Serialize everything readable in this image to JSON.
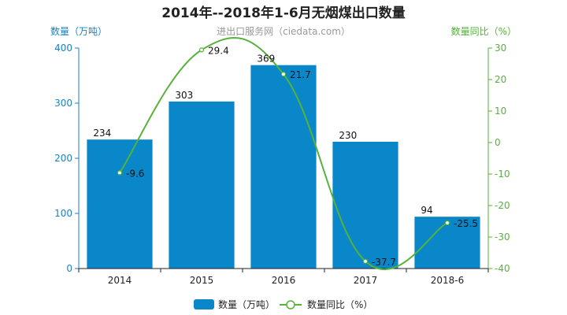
{
  "chart_data": {
    "type": "bar",
    "title": "2014年--2018年1-6月无烟煤出口数量",
    "subtitle": "进出口服务网（ciedata.com）",
    "categories": [
      "2014",
      "2015",
      "2016",
      "2017",
      "2018-6"
    ],
    "y_left": {
      "label": "数量（万吨）",
      "min": 0,
      "max": 400,
      "ticks": [
        0,
        100,
        200,
        300,
        400
      ]
    },
    "y_right": {
      "label": "数量同比（%）",
      "min": -40,
      "max": 30,
      "ticks": [
        -40,
        -30,
        -20,
        -10,
        0,
        10,
        20,
        30
      ]
    },
    "series": [
      {
        "name": "数量（万吨）",
        "type": "bar",
        "axis": "left",
        "color": "#0a87c8",
        "values": [
          234,
          303,
          369,
          230,
          94
        ]
      },
      {
        "name": "数量同比（%）",
        "type": "line",
        "axis": "right",
        "color": "#55b23a",
        "smooth": true,
        "values": [
          -9.6,
          29.4,
          21.7,
          -37.7,
          -25.5
        ]
      }
    ],
    "grid": false,
    "legend_position": "bottom-center"
  }
}
